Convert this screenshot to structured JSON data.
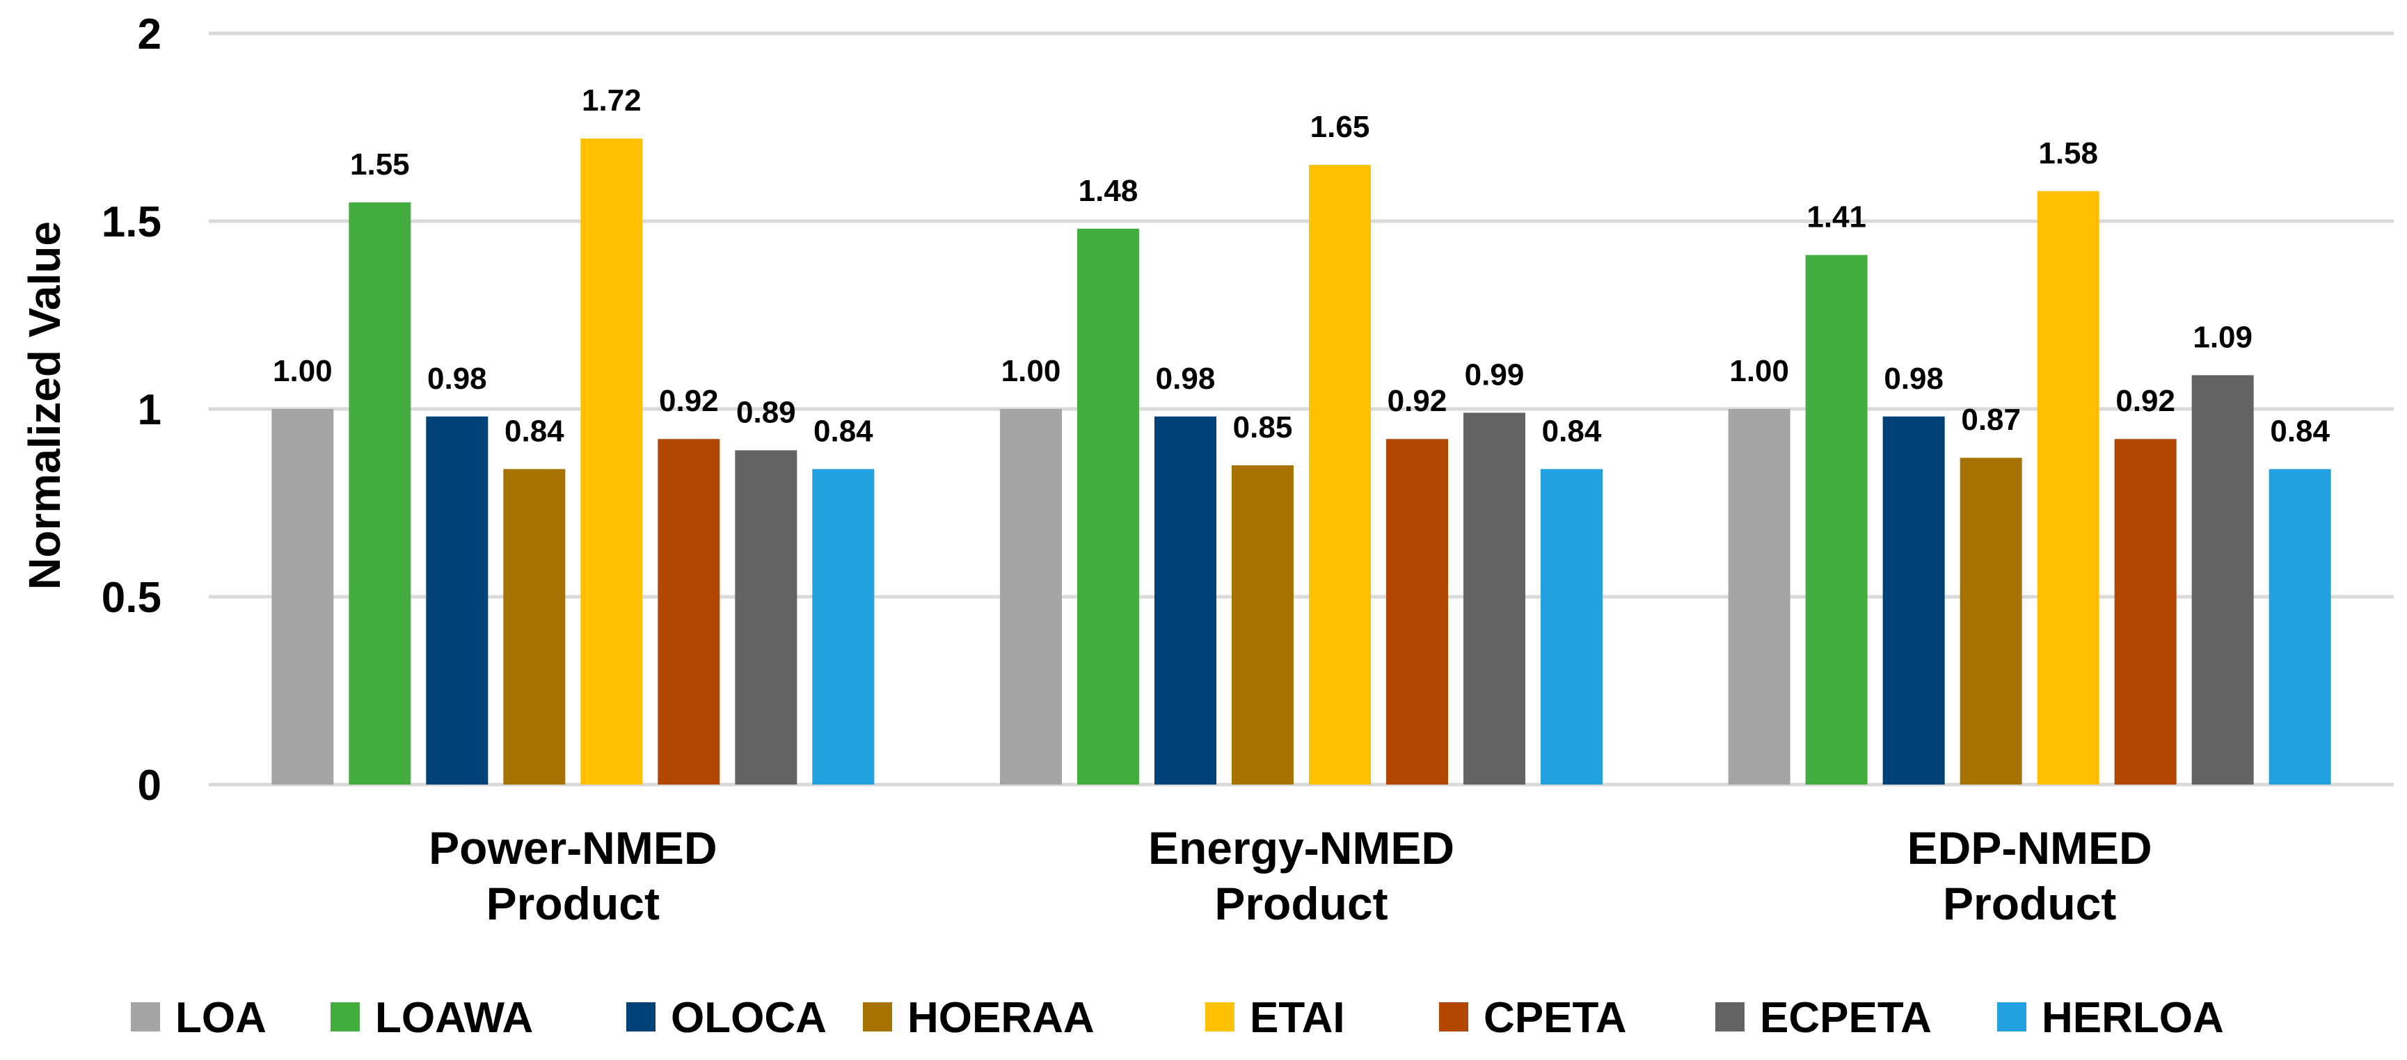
{
  "chart_data": {
    "type": "bar",
    "title": "",
    "xlabel": "",
    "ylabel": "Normalized Value",
    "ylim": [
      0,
      2
    ],
    "yticks": [
      {
        "value": 0,
        "label": "0"
      },
      {
        "value": 0.5,
        "label": "0.5"
      },
      {
        "value": 1,
        "label": "1"
      },
      {
        "value": 1.5,
        "label": "1.5"
      },
      {
        "value": 2,
        "label": "2"
      }
    ],
    "grid": true,
    "legend_position": "bottom",
    "categories": [
      {
        "line1": "Power-NMED",
        "line2": "Product"
      },
      {
        "line1": "Energy-NMED",
        "line2": "Product"
      },
      {
        "line1": "EDP-NMED",
        "line2": "Product"
      }
    ],
    "series": [
      {
        "name": "LOA",
        "color": "#a5a5a5",
        "values": [
          1.0,
          1.0,
          1.0
        ],
        "labels": [
          "1.00",
          "1.00",
          "1.00"
        ]
      },
      {
        "name": "LOAWA",
        "color": "#43ae3f",
        "values": [
          1.55,
          1.48,
          1.41
        ],
        "labels": [
          "1.55",
          "1.48",
          "1.41"
        ]
      },
      {
        "name": "OLOCA",
        "color": "#004278",
        "values": [
          0.98,
          0.98,
          0.98
        ],
        "labels": [
          "0.98",
          "0.98",
          "0.98"
        ]
      },
      {
        "name": "HOERAA",
        "color": "#a67300",
        "values": [
          0.84,
          0.85,
          0.87
        ],
        "labels": [
          "0.84",
          "0.85",
          "0.87"
        ]
      },
      {
        "name": "ETAI",
        "color": "#ffc000",
        "values": [
          1.72,
          1.65,
          1.58
        ],
        "labels": [
          "1.72",
          "1.65",
          "1.58"
        ]
      },
      {
        "name": "CPETA",
        "color": "#b34700",
        "values": [
          0.92,
          0.92,
          0.92
        ],
        "labels": [
          "0.92",
          "0.92",
          "0.92"
        ]
      },
      {
        "name": "ECPETA",
        "color": "#636363",
        "values": [
          0.89,
          0.99,
          1.09
        ],
        "labels": [
          "0.89",
          "0.99",
          "1.09"
        ]
      },
      {
        "name": "HERLOA",
        "color": "#22a0e0",
        "values": [
          0.84,
          0.84,
          0.84
        ],
        "labels": [
          "0.84",
          "0.84",
          "0.84"
        ]
      }
    ]
  }
}
